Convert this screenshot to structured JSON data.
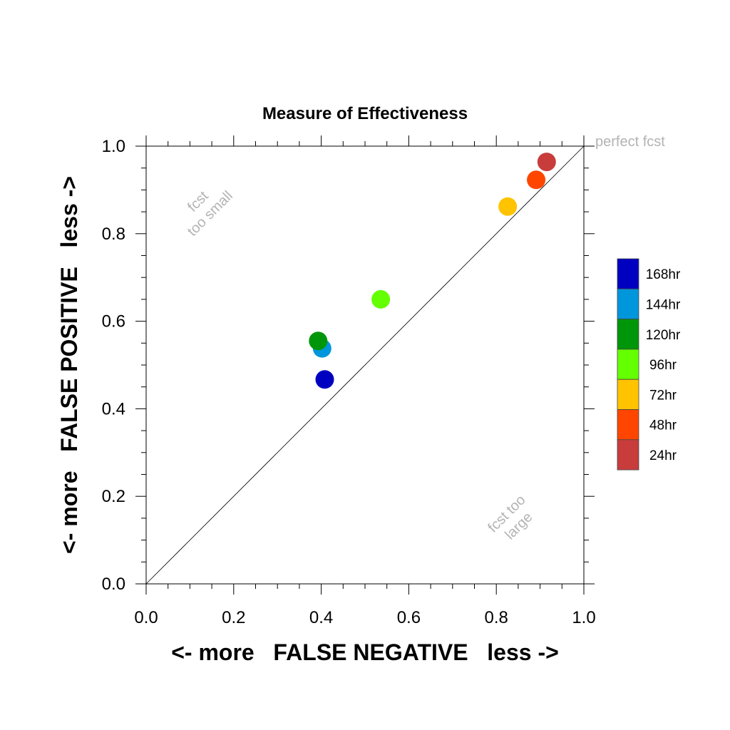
{
  "chart_data": {
    "type": "scatter",
    "title": "Measure of Effectiveness",
    "xlabel": "<- more   FALSE NEGATIVE   less ->",
    "ylabel": "<- more   FALSE POSITIVE   less ->",
    "xlim": [
      0.0,
      1.0
    ],
    "ylim": [
      0.0,
      1.0
    ],
    "x_ticks": [
      "0.0",
      "0.2",
      "0.4",
      "0.6",
      "0.8",
      "1.0"
    ],
    "y_ticks": [
      "0.0",
      "0.2",
      "0.4",
      "0.6",
      "0.8",
      "1.0"
    ],
    "reference_line": "diagonal y = x",
    "annotations": {
      "perfect": "perfect fcst",
      "too_small": [
        "fcst",
        "too small"
      ],
      "too_large": [
        "fcst too",
        "large"
      ]
    },
    "grid": false,
    "legend_position": "right",
    "series": [
      {
        "name": "168hr",
        "color": "#0000c0",
        "x": 0.408,
        "y": 0.467
      },
      {
        "name": "144hr",
        "color": "#0096dc",
        "x": 0.402,
        "y": 0.538
      },
      {
        "name": "120hr",
        "color": "#00960a",
        "x": 0.393,
        "y": 0.555
      },
      {
        "name": "96hr",
        "color": "#64ff00",
        "x": 0.536,
        "y": 0.65
      },
      {
        "name": "72hr",
        "color": "#ffc300",
        "x": 0.826,
        "y": 0.862
      },
      {
        "name": "48hr",
        "color": "#ff4600",
        "x": 0.891,
        "y": 0.923
      },
      {
        "name": "24hr",
        "color": "#c83c3c",
        "x": 0.915,
        "y": 0.964
      }
    ]
  }
}
